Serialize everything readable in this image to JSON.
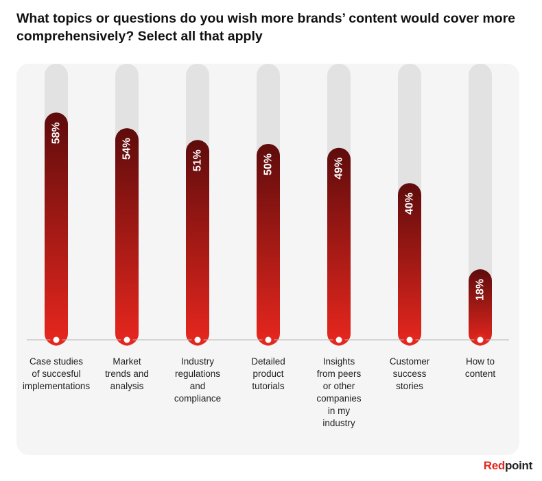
{
  "title": "What topics or questions do you wish more brands’ content would cover more comprehensively? Select all that apply",
  "brand": {
    "part1": "Red",
    "part2": "point"
  },
  "colors": {
    "bar_top": "#5e0c0c",
    "bar_bottom": "#e8271e",
    "track": "#e2e2e2",
    "accent": "#e2271f"
  },
  "chart_data": {
    "type": "bar",
    "orientation": "vertical",
    "ylim": [
      0,
      100
    ],
    "categories": [
      [
        "Case studies",
        "of succesful",
        "implementations"
      ],
      [
        "Market",
        "trends and",
        "analysis"
      ],
      [
        "Industry",
        "regulations",
        "and",
        "compliance"
      ],
      [
        "Detailed",
        "product",
        "tutorials"
      ],
      [
        "Insights",
        "from peers",
        "or other",
        "companies",
        "in my",
        "industry"
      ],
      [
        "Customer",
        "success",
        "stories"
      ],
      [
        "How to",
        "content"
      ]
    ],
    "values": [
      58,
      54,
      51,
      50,
      49,
      40,
      18
    ],
    "labels": [
      "58%",
      "54%",
      "51%",
      "50%",
      "49%",
      "40%",
      "18%"
    ]
  }
}
